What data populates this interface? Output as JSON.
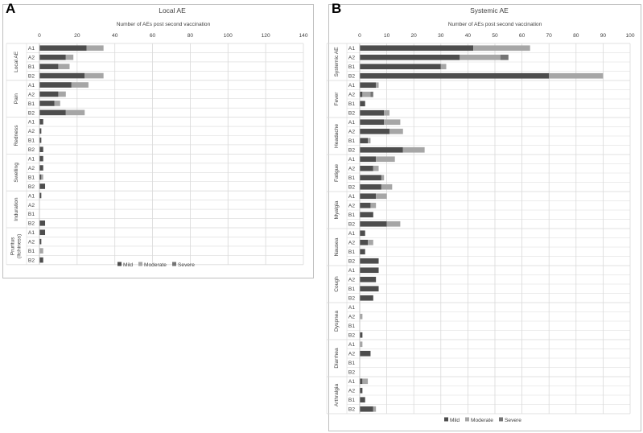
{
  "panel_letters": [
    "A",
    "B"
  ],
  "colors": {
    "mild": "#4d4d4d",
    "moderate": "#a6a6a6",
    "severe": "#757575",
    "grid": "#d9d9d9",
    "text": "#404040"
  },
  "chart_data": [
    {
      "type": "bar",
      "orientation": "horizontal",
      "stacked": true,
      "title": "Local AE",
      "xlabel": "Number of AEs post second vaccination",
      "xlim": [
        0,
        140
      ],
      "xticks": [
        0,
        20,
        40,
        60,
        80,
        100,
        120,
        140
      ],
      "grid": true,
      "legend_position": "bottom",
      "groups": [
        {
          "label": "Local AE",
          "categories": [
            "A1",
            "A2",
            "B1",
            "B2"
          ]
        },
        {
          "label": "Pain",
          "categories": [
            "A1",
            "A2",
            "B1",
            "B2"
          ]
        },
        {
          "label": "Redness",
          "categories": [
            "A1",
            "A2",
            "B1",
            "B2"
          ]
        },
        {
          "label": "Swelling",
          "categories": [
            "A1",
            "A2",
            "B1",
            "B2"
          ]
        },
        {
          "label": "Induration",
          "categories": [
            "A1",
            "A2",
            "B1",
            "B2"
          ]
        },
        {
          "label": "Pruritus (Itchiness)",
          "categories": [
            "A1",
            "A2",
            "B1",
            "B2"
          ]
        }
      ],
      "series": [
        {
          "name": "Mild",
          "values": [
            25,
            14,
            10,
            24,
            17,
            10,
            8,
            14,
            2,
            1,
            1,
            2,
            2,
            2,
            1,
            3,
            1,
            0,
            0,
            3,
            3,
            1,
            0,
            2
          ]
        },
        {
          "name": "Moderate",
          "values": [
            9,
            4,
            6,
            10,
            9,
            4,
            3,
            10,
            0,
            0,
            0,
            0,
            0,
            0,
            1,
            0,
            0,
            0,
            0,
            0,
            0,
            0,
            2,
            0
          ]
        },
        {
          "name": "Severe",
          "values": [
            0,
            0,
            0,
            0,
            0,
            0,
            0,
            0,
            0,
            0,
            0,
            0,
            0,
            0,
            0,
            0,
            0,
            0,
            0,
            0,
            0,
            0,
            0,
            0
          ]
        }
      ]
    },
    {
      "type": "bar",
      "orientation": "horizontal",
      "stacked": true,
      "title": "Systemic  AE",
      "xlabel": "Number of AEs post second vaccination",
      "xlim": [
        0,
        100
      ],
      "xticks": [
        0,
        10,
        20,
        30,
        40,
        50,
        60,
        70,
        80,
        90,
        100
      ],
      "grid": true,
      "legend_position": "bottom",
      "groups": [
        {
          "label": "Systemic AE",
          "categories": [
            "A1",
            "A2",
            "B1",
            "B2"
          ]
        },
        {
          "label": "Fever",
          "categories": [
            "A1",
            "A2",
            "B1",
            "B2"
          ]
        },
        {
          "label": "Headache",
          "categories": [
            "A1",
            "A2",
            "B1",
            "B2"
          ]
        },
        {
          "label": "Fatigue",
          "categories": [
            "A1",
            "A2",
            "B1",
            "B2"
          ]
        },
        {
          "label": "Myalgia",
          "categories": [
            "A1",
            "A2",
            "B1",
            "B2"
          ]
        },
        {
          "label": "Nausea",
          "categories": [
            "A1",
            "A2",
            "B1",
            "B2"
          ]
        },
        {
          "label": "Cough",
          "categories": [
            "A1",
            "A2",
            "B1",
            "B2"
          ]
        },
        {
          "label": "Dyspnea",
          "categories": [
            "A1",
            "A2",
            "B1",
            "B2"
          ]
        },
        {
          "label": "Diarrhea",
          "categories": [
            "A1",
            "A2",
            "B1",
            "B2"
          ]
        },
        {
          "label": "Arthralgia",
          "categories": [
            "A1",
            "A2",
            "B1",
            "B2"
          ]
        }
      ],
      "series": [
        {
          "name": "Mild",
          "values": [
            42,
            37,
            30,
            70,
            6,
            1,
            2,
            9,
            9,
            11,
            3,
            16,
            6,
            5,
            8,
            8,
            6,
            4,
            5,
            10,
            2,
            3,
            2,
            7,
            7,
            6,
            7,
            5,
            0,
            0,
            0,
            1,
            0,
            4,
            0,
            0,
            1,
            1,
            2,
            5
          ]
        },
        {
          "name": "Moderate",
          "values": [
            21,
            15,
            2,
            20,
            1,
            3,
            0,
            2,
            6,
            5,
            1,
            8,
            7,
            2,
            1,
            4,
            4,
            2,
            0,
            5,
            0,
            2,
            0,
            0,
            0,
            0,
            0,
            0,
            0,
            1,
            0,
            0,
            1,
            0,
            0,
            0,
            2,
            0,
            0,
            1
          ]
        },
        {
          "name": "Severe",
          "values": [
            0,
            3,
            0,
            0,
            0,
            1,
            0,
            0,
            0,
            0,
            0,
            0,
            0,
            0,
            0,
            0,
            0,
            0,
            0,
            0,
            0,
            0,
            0,
            0,
            0,
            0,
            0,
            0,
            0,
            0,
            0,
            0,
            0,
            0,
            0,
            0,
            0,
            0,
            0,
            0
          ]
        }
      ]
    }
  ]
}
